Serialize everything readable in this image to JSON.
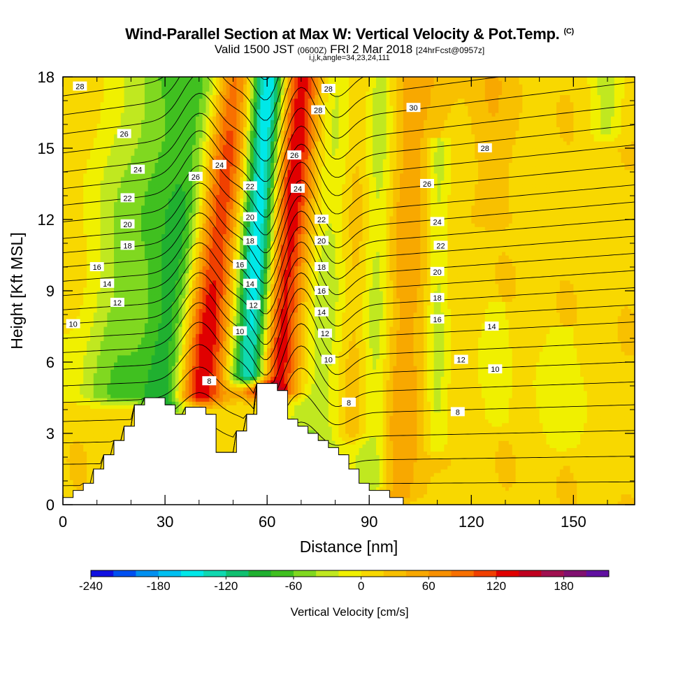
{
  "title": {
    "main": "Wind-Parallel Section at Max W: Vertical Velocity & Pot.Temp.",
    "unit": "(C)",
    "valid_prefix": "Valid 1500 JST",
    "valid_zulu": "(0600Z)",
    "valid_date": "FRI 2 Mar 2018",
    "forecast": "[24hrFcst@0957z]",
    "indices": "i,j,k,angle=34,23,24,111"
  },
  "chart_data": {
    "type": "heatmap",
    "title": "Wind-Parallel Section at Max W: Vertical Velocity & Pot.Temp.",
    "xlabel": "Distance [nm]",
    "ylabel": "Height [Kft MSL]",
    "xlim": [
      0,
      168
    ],
    "ylim": [
      0,
      18
    ],
    "x_ticks": [
      0,
      30,
      60,
      90,
      120,
      150
    ],
    "y_ticks": [
      0,
      3,
      6,
      9,
      12,
      15,
      18
    ],
    "colorbar": {
      "label": "Vertical Velocity [cm/s]",
      "ticks": [
        -240,
        -180,
        -120,
        -60,
        0,
        60,
        120,
        180
      ],
      "min": -240,
      "max": 220,
      "colors": [
        "#1010e0",
        "#0050f0",
        "#0090f0",
        "#00c0f0",
        "#00e8e8",
        "#10d8b0",
        "#10c070",
        "#20b030",
        "#40c020",
        "#80d820",
        "#c0e820",
        "#f0f000",
        "#f8d800",
        "#f8c000",
        "#f8a800",
        "#f89000",
        "#f87000",
        "#f04000",
        "#e00000",
        "#c00020",
        "#a01050",
        "#801070",
        "#6010a0"
      ]
    },
    "terrain": [
      [
        0,
        0.3
      ],
      [
        3,
        0.3
      ],
      [
        3,
        0.6
      ],
      [
        6,
        0.6
      ],
      [
        6,
        0.9
      ],
      [
        9,
        0.9
      ],
      [
        9,
        1.5
      ],
      [
        12,
        1.5
      ],
      [
        12,
        2.1
      ],
      [
        15,
        2.1
      ],
      [
        15,
        2.7
      ],
      [
        18,
        2.7
      ],
      [
        18,
        3.3
      ],
      [
        21,
        3.3
      ],
      [
        21,
        4.2
      ],
      [
        24,
        4.2
      ],
      [
        24,
        4.5
      ],
      [
        27,
        4.5
      ],
      [
        27,
        4.5
      ],
      [
        30,
        4.5
      ],
      [
        30,
        4.2
      ],
      [
        33,
        4.2
      ],
      [
        33,
        3.8
      ],
      [
        36,
        3.8
      ],
      [
        36,
        4.1
      ],
      [
        39,
        4.1
      ],
      [
        39,
        4.1
      ],
      [
        42,
        4.1
      ],
      [
        42,
        3.8
      ],
      [
        45,
        3.8
      ],
      [
        45,
        2.2
      ],
      [
        48,
        2.2
      ],
      [
        48,
        2.2
      ],
      [
        51,
        2.2
      ],
      [
        51,
        3.1
      ],
      [
        54,
        3.1
      ],
      [
        54,
        3.8
      ],
      [
        57,
        3.8
      ],
      [
        57,
        5.1
      ],
      [
        60,
        5.1
      ],
      [
        60,
        5.1
      ],
      [
        63,
        5.1
      ],
      [
        63,
        4.8
      ],
      [
        66,
        4.8
      ],
      [
        66,
        3.6
      ],
      [
        69,
        3.6
      ],
      [
        69,
        3.3
      ],
      [
        72,
        3.3
      ],
      [
        72,
        3.0
      ],
      [
        75,
        3.0
      ],
      [
        75,
        2.7
      ],
      [
        78,
        2.7
      ],
      [
        78,
        2.4
      ],
      [
        81,
        2.4
      ],
      [
        81,
        2.1
      ],
      [
        84,
        2.1
      ],
      [
        84,
        1.5
      ],
      [
        87,
        1.5
      ],
      [
        87,
        0.9
      ],
      [
        90,
        0.9
      ],
      [
        90,
        0.6
      ],
      [
        96,
        0.6
      ],
      [
        96,
        0.3
      ],
      [
        100,
        0.3
      ],
      [
        100,
        0
      ]
    ],
    "vertical_velocity_bands": [
      {
        "x": 22,
        "w": 42,
        "core": -70,
        "top": 18,
        "bottom": 4.6,
        "slope": 0.9
      },
      {
        "x": 36,
        "w": 22,
        "core": -160,
        "top": 18,
        "bottom": 4.3,
        "slope": 0.9
      },
      {
        "x": 41,
        "w": 26,
        "core": 190,
        "top": 18,
        "bottom": 4.5,
        "slope": 0.8
      },
      {
        "x": 57,
        "w": 18,
        "core": -230,
        "top": 18,
        "bottom": 5.4,
        "slope": 0.4
      },
      {
        "x": 64,
        "w": 22,
        "core": 170,
        "top": 18,
        "bottom": 4.8,
        "slope": 0.6
      },
      {
        "x": 76,
        "w": 26,
        "core": -55,
        "top": 18,
        "bottom": 1.5,
        "slope": 0.45
      },
      {
        "x": 86,
        "w": 16,
        "core": 40,
        "top": 18,
        "bottom": 3.0,
        "slope": 0.2
      },
      {
        "x": 92,
        "w": 14,
        "core": -55,
        "top": 18,
        "bottom": 0.8,
        "slope": 0.2
      },
      {
        "x": 101,
        "w": 20,
        "core": 45,
        "top": 18,
        "bottom": 0.4,
        "slope": 0.4
      },
      {
        "x": 110,
        "w": 10,
        "core": -45,
        "top": 15,
        "bottom": 2.5,
        "slope": 0.05
      },
      {
        "x": 128,
        "w": 12,
        "core": -25,
        "top": 8,
        "bottom": 3.5,
        "slope": 0.02
      },
      {
        "x": 147,
        "w": 16,
        "core": -25,
        "top": 7,
        "bottom": 2.5,
        "slope": 0.02
      },
      {
        "x": 160,
        "w": 14,
        "core": -40,
        "top": 18,
        "bottom": 15.6,
        "slope": 0
      },
      {
        "x": 125,
        "w": 18,
        "core": 25,
        "top": 18,
        "bottom": 12,
        "slope": 0.05
      }
    ],
    "theta_contours": [
      {
        "label": "28",
        "x": 5,
        "y": 17.6
      },
      {
        "label": "28",
        "x": 78,
        "y": 17.5
      },
      {
        "label": "28",
        "x": 75,
        "y": 16.6
      },
      {
        "label": "26",
        "x": 18,
        "y": 15.6
      },
      {
        "label": "24",
        "x": 22,
        "y": 14.1
      },
      {
        "label": "22",
        "x": 19,
        "y": 12.9
      },
      {
        "label": "20",
        "x": 19,
        "y": 11.8
      },
      {
        "label": "18",
        "x": 19,
        "y": 10.9
      },
      {
        "label": "16",
        "x": 10,
        "y": 10.0
      },
      {
        "label": "14",
        "x": 13,
        "y": 9.3
      },
      {
        "label": "12",
        "x": 16,
        "y": 8.5
      },
      {
        "label": "10",
        "x": 3,
        "y": 7.6
      },
      {
        "label": "26",
        "x": 39,
        "y": 13.8
      },
      {
        "label": "24",
        "x": 46,
        "y": 14.3
      },
      {
        "label": "22",
        "x": 55,
        "y": 13.4
      },
      {
        "label": "20",
        "x": 55,
        "y": 12.1
      },
      {
        "label": "18",
        "x": 55,
        "y": 11.1
      },
      {
        "label": "16",
        "x": 52,
        "y": 10.1
      },
      {
        "label": "14",
        "x": 55,
        "y": 9.3
      },
      {
        "label": "12",
        "x": 56,
        "y": 8.4
      },
      {
        "label": "10",
        "x": 52,
        "y": 7.3
      },
      {
        "label": "8",
        "x": 43,
        "y": 5.2
      },
      {
        "label": "26",
        "x": 68,
        "y": 14.7
      },
      {
        "label": "24",
        "x": 69,
        "y": 13.3
      },
      {
        "label": "22",
        "x": 76,
        "y": 12.0
      },
      {
        "label": "20",
        "x": 76,
        "y": 11.1
      },
      {
        "label": "18",
        "x": 76,
        "y": 10.0
      },
      {
        "label": "16",
        "x": 76,
        "y": 9.0
      },
      {
        "label": "14",
        "x": 76,
        "y": 8.1
      },
      {
        "label": "12",
        "x": 77,
        "y": 7.2
      },
      {
        "label": "10",
        "x": 78,
        "y": 6.1
      },
      {
        "label": "8",
        "x": 84,
        "y": 4.3
      },
      {
        "label": "30",
        "x": 103,
        "y": 16.7
      },
      {
        "label": "28",
        "x": 124,
        "y": 15.0
      },
      {
        "label": "26",
        "x": 107,
        "y": 13.5
      },
      {
        "label": "24",
        "x": 110,
        "y": 11.9
      },
      {
        "label": "22",
        "x": 111,
        "y": 10.9
      },
      {
        "label": "20",
        "x": 110,
        "y": 9.8
      },
      {
        "label": "18",
        "x": 110,
        "y": 8.7
      },
      {
        "label": "16",
        "x": 110,
        "y": 7.8
      },
      {
        "label": "14",
        "x": 126,
        "y": 7.5
      },
      {
        "label": "12",
        "x": 117,
        "y": 6.1
      },
      {
        "label": "10",
        "x": 127,
        "y": 5.7
      },
      {
        "label": "8",
        "x": 116,
        "y": 3.9
      }
    ]
  }
}
